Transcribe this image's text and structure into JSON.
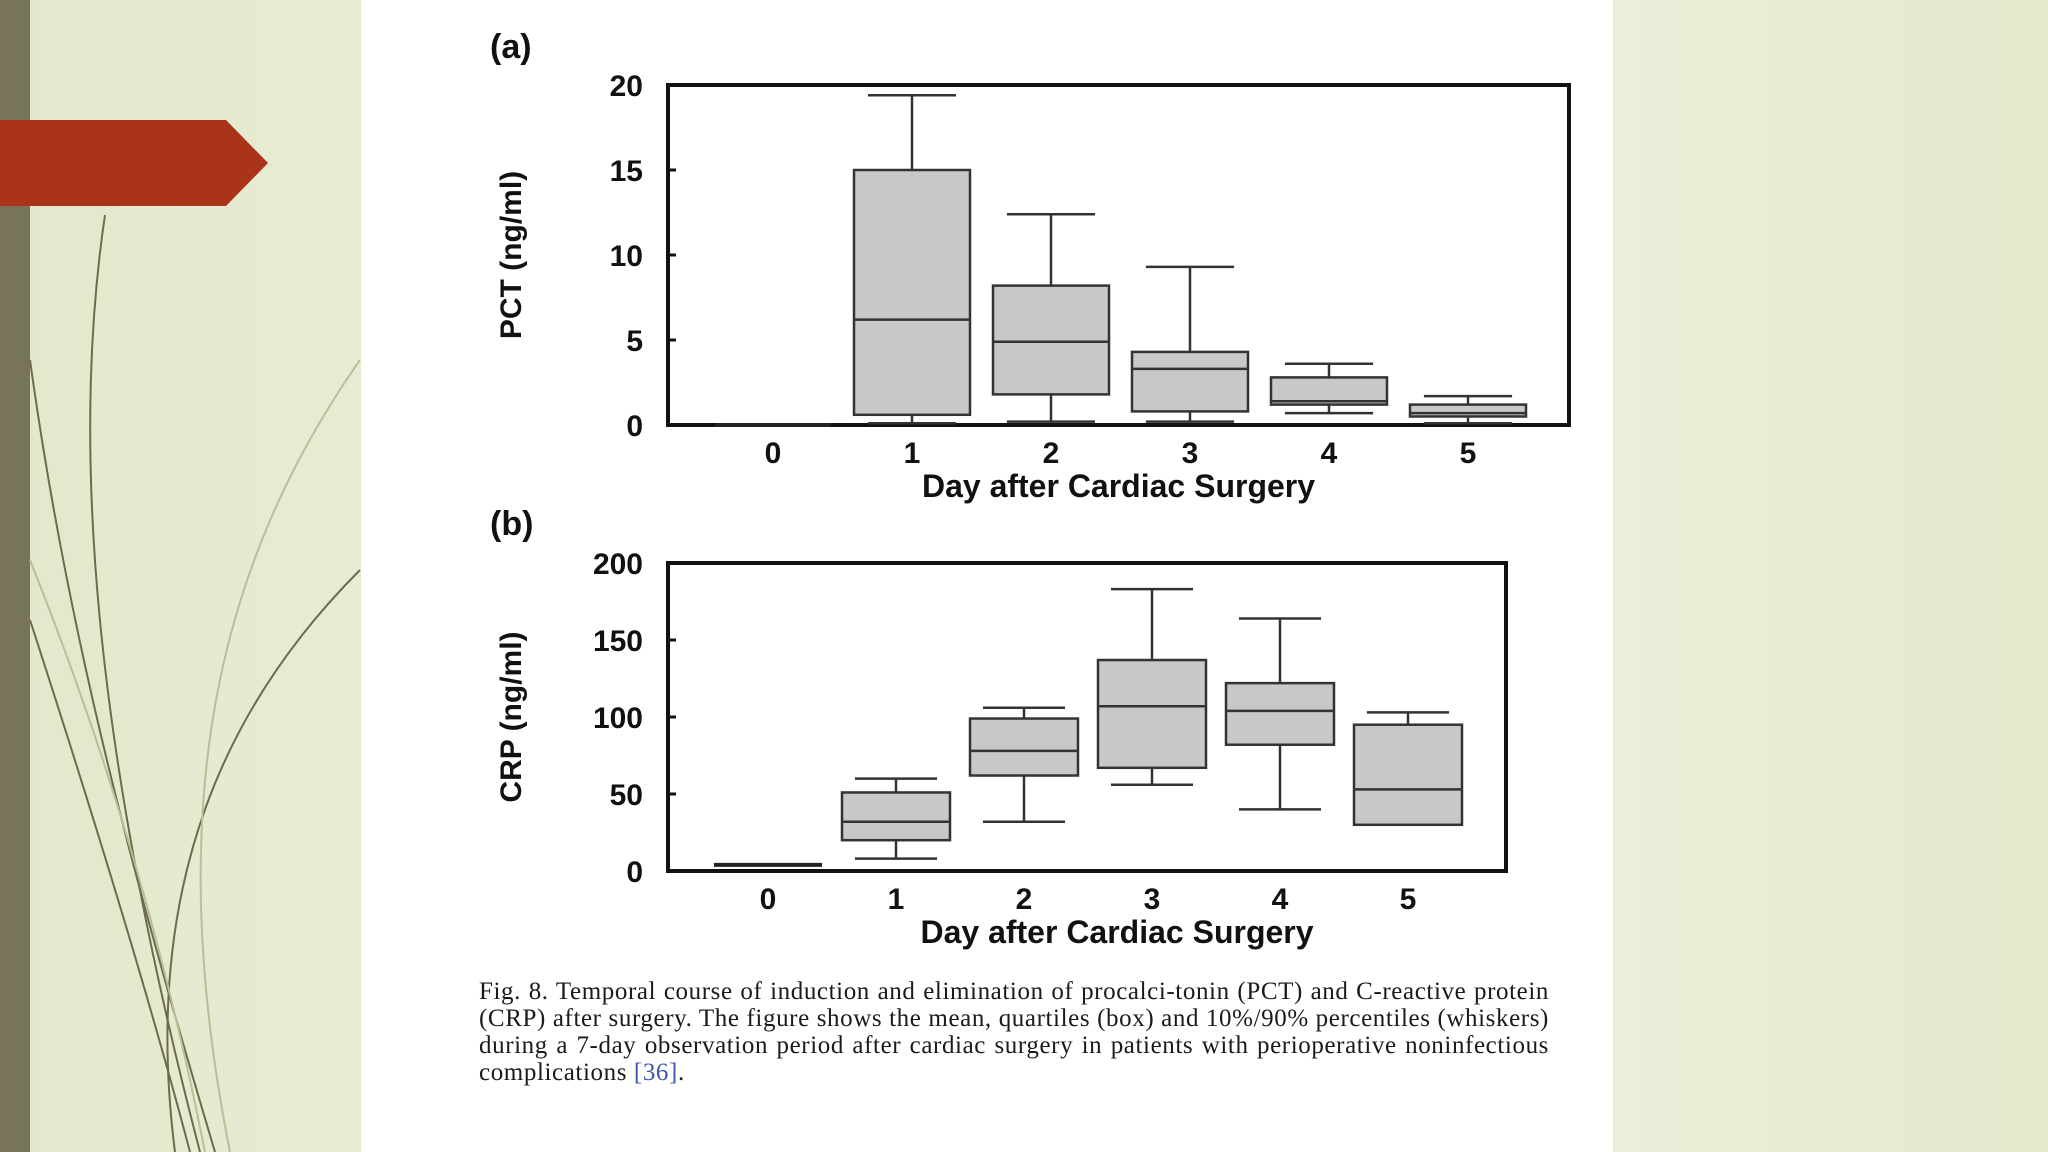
{
  "theme": {
    "arrow_color": "#a93417",
    "bar_color": "#77745a",
    "box_fill": "#c8c8c8",
    "ref_color": "#3a5aa8"
  },
  "chart_data": [
    {
      "type": "box",
      "panel_label": "(a)",
      "xlabel": "Day after Cardiac Surgery",
      "ylabel": "PCT (ng/ml)",
      "ylim": [
        0,
        20
      ],
      "yticks": [
        0,
        5,
        10,
        15,
        20
      ],
      "categories": [
        "0",
        "1",
        "2",
        "3",
        "4",
        "5"
      ],
      "boxes": [
        {
          "day": "0",
          "p10": 0,
          "q1": 0,
          "median": 0,
          "q3": 0,
          "p90": 0.1
        },
        {
          "day": "1",
          "p10": 0.1,
          "q1": 0.6,
          "median": 6.2,
          "q3": 15.0,
          "p90": 19.4
        },
        {
          "day": "2",
          "p10": 0.2,
          "q1": 1.8,
          "median": 4.9,
          "q3": 8.2,
          "p90": 12.4
        },
        {
          "day": "3",
          "p10": 0.2,
          "q1": 0.8,
          "median": 3.3,
          "q3": 4.3,
          "p90": 9.3
        },
        {
          "day": "4",
          "p10": 0.7,
          "q1": 1.2,
          "median": 1.4,
          "q3": 2.8,
          "p90": 3.6
        },
        {
          "day": "5",
          "p10": 0.1,
          "q1": 0.5,
          "median": 0.7,
          "q3": 1.2,
          "p90": 1.7
        }
      ]
    },
    {
      "type": "box",
      "panel_label": "(b)",
      "xlabel": "Day after Cardiac Surgery",
      "ylabel": "CRP (ng/ml)",
      "ylim": [
        0,
        200
      ],
      "yticks": [
        0,
        50,
        100,
        150,
        200
      ],
      "categories": [
        "0",
        "1",
        "2",
        "3",
        "4",
        "5"
      ],
      "boxes": [
        {
          "day": "0",
          "p10": 4,
          "q1": 4,
          "median": 4,
          "q3": 4,
          "p90": 4
        },
        {
          "day": "1",
          "p10": 8,
          "q1": 20,
          "median": 32,
          "q3": 51,
          "p90": 60
        },
        {
          "day": "2",
          "p10": 32,
          "q1": 62,
          "median": 78,
          "q3": 99,
          "p90": 106
        },
        {
          "day": "3",
          "p10": 56,
          "q1": 67,
          "median": 107,
          "q3": 137,
          "p90": 183
        },
        {
          "day": "4",
          "p10": 40,
          "q1": 82,
          "median": 104,
          "q3": 122,
          "p90": 164
        },
        {
          "day": "5",
          "p10": 30,
          "q1": 30,
          "median": 53,
          "q3": 95,
          "p90": 103
        }
      ]
    }
  ],
  "caption": {
    "text": "Fig. 8. Temporal course of induction and elimination of procalci-tonin (PCT) and C-reactive protein (CRP) after surgery. The figure shows the mean, quartiles (box) and 10%/90% percentiles (whiskers) during a 7-day observation period after cardiac surgery in patients with perioperative noninfectious complications ",
    "reference": "[36]",
    "end": "."
  }
}
